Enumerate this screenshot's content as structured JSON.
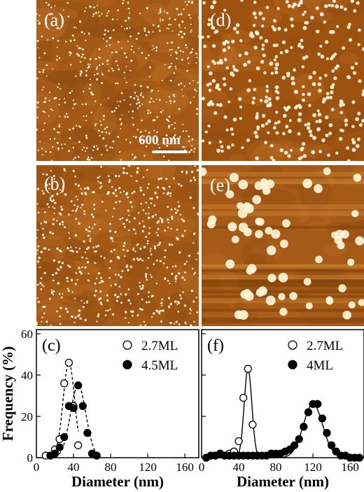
{
  "panels": {
    "a": {
      "label": "(a)"
    },
    "b": {
      "label": "(b)"
    },
    "d": {
      "label": "(d)"
    },
    "e": {
      "label": "(e)"
    }
  },
  "scale_bar": {
    "label": "600 nm"
  },
  "colors": {
    "afm_background": "#a45a16",
    "afm_dot": "#fff6d8",
    "line": "#000000"
  },
  "chart_data": [
    {
      "panel": "(c)",
      "type": "scatter",
      "xlabel": "Diameter (nm)",
      "ylabel": "Frequency (%)",
      "xlim": [
        0,
        175
      ],
      "ylim": [
        0,
        62
      ],
      "xticks": [
        0,
        40,
        80,
        120,
        160
      ],
      "yticks": [
        0,
        20,
        40,
        60
      ],
      "legend_position": "top-right",
      "series": [
        {
          "name": "2.7ML",
          "marker": "open-circle",
          "fit": "dashed",
          "x": [
            10,
            20,
            25,
            30,
            35,
            40,
            45
          ],
          "y": [
            1,
            4,
            9,
            36,
            46,
            25,
            6
          ]
        },
        {
          "name": "4.5ML",
          "marker": "filled-circle",
          "fit": "dashed",
          "x": [
            15,
            20,
            25,
            30,
            35,
            40,
            45,
            50,
            55,
            60,
            65
          ],
          "y": [
            1,
            2,
            5,
            10,
            25,
            24,
            35,
            25,
            12,
            2,
            1
          ]
        }
      ]
    },
    {
      "panel": "(f)",
      "type": "scatter",
      "xlabel": "Diameter (nm)",
      "ylabel": "",
      "xlim": [
        0,
        175
      ],
      "ylim": [
        0,
        62
      ],
      "xticks": [
        0,
        40,
        80,
        120,
        160
      ],
      "yticks": [
        0,
        20,
        40,
        60
      ],
      "legend_position": "top-right",
      "series": [
        {
          "name": "2.7ML",
          "marker": "open-circle",
          "fit": "solid",
          "x": [
            5,
            10,
            15,
            20,
            25,
            30,
            35,
            40,
            45,
            50,
            55,
            60
          ],
          "y": [
            0,
            1,
            1,
            2,
            1,
            2,
            3,
            8,
            29,
            43,
            16,
            1
          ]
        },
        {
          "name": "4ML",
          "marker": "filled-circle",
          "fit": "solid",
          "x": [
            5,
            10,
            15,
            20,
            25,
            30,
            35,
            40,
            45,
            50,
            55,
            60,
            65,
            70,
            75,
            80,
            85,
            90,
            95,
            100,
            105,
            110,
            115,
            120,
            125,
            130,
            135,
            140,
            145,
            150,
            155,
            160,
            165,
            170
          ],
          "y": [
            0,
            1,
            1,
            2,
            1,
            1,
            1,
            1,
            1,
            1,
            1,
            1,
            1,
            1,
            2,
            2,
            2,
            3,
            4,
            6,
            9,
            15,
            22,
            26,
            26,
            19,
            12,
            6,
            3,
            1,
            1,
            0,
            0,
            0
          ]
        }
      ]
    }
  ]
}
